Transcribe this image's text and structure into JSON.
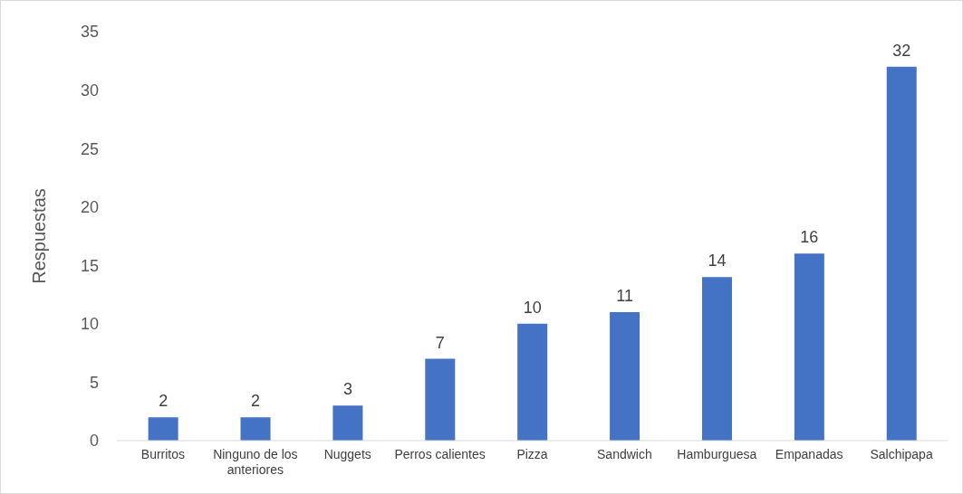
{
  "chart_data": {
    "type": "bar",
    "ylabel": "Respuestas",
    "categories": [
      "Burritos",
      "Ninguno de los anteriores",
      "Nuggets",
      "Perros calientes",
      "Pizza",
      "Sandwich",
      "Hamburguesa",
      "Empanadas",
      "Salchipapa"
    ],
    "values": [
      2,
      2,
      3,
      7,
      10,
      11,
      14,
      16,
      32
    ],
    "color": "#4472c4",
    "ylim": [
      0,
      35
    ],
    "yticks": [
      0,
      5,
      10,
      15,
      20,
      25,
      30,
      35
    ],
    "grid": false,
    "data_labels": true
  }
}
